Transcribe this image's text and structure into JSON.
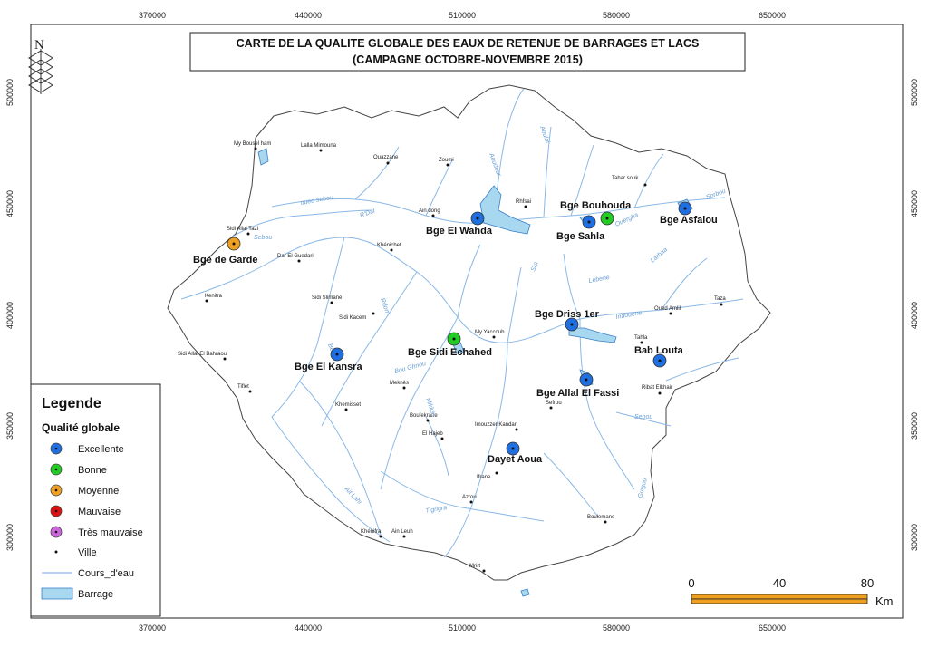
{
  "title": {
    "line1": "CARTE DE LA QUALITE GLOBALE DES EAUX DE RETENUE DE BARRAGES ET LACS",
    "line2": "(CAMPAGNE OCTOBRE-NOVEMBRE 2015)"
  },
  "north_arrow": {
    "letter": "N"
  },
  "axes": {
    "x_ticks": [
      "370000",
      "440000",
      "510000",
      "580000",
      "650000"
    ],
    "y_ticks": [
      "500000",
      "450000",
      "400000",
      "350000",
      "300000"
    ]
  },
  "colors": {
    "Excellente": "#1f6fe0",
    "Bonne": "#22cc22",
    "Moyenne": "#f0a020",
    "Mauvaise": "#dd1111",
    "Tres mauvaise": "#cc66dd",
    "river": "#8ab8e6",
    "reservoir": "#a8d8f0"
  },
  "dams": [
    {
      "name": "Bge El Wahda",
      "quality": "Excellente"
    },
    {
      "name": "Bge Bouhouda",
      "quality": "Bonne"
    },
    {
      "name": "Bge Sahla",
      "quality": "Excellente"
    },
    {
      "name": "Bge Asfalou",
      "quality": "Excellente"
    },
    {
      "name": "Bge de Garde",
      "quality": "Moyenne"
    },
    {
      "name": "Bge Driss 1er",
      "quality": "Excellente"
    },
    {
      "name": "Bge Sidi Echahed",
      "quality": "Bonne"
    },
    {
      "name": "Bab Louta",
      "quality": "Excellente"
    },
    {
      "name": "Bge El Kansra",
      "quality": "Excellente"
    },
    {
      "name": "Bge Allal El Fassi",
      "quality": "Excellente"
    },
    {
      "name": "Dayet Aoua",
      "quality": "Excellente"
    }
  ],
  "cities": [
    "My Bousel ham",
    "Lalla Mimouna",
    "Ouazzane",
    "Zoumi",
    "Ain dorig",
    "Rhfsai",
    "Tahar souk",
    "Sidi Allal Tazi",
    "Khénichet",
    "Dar El Guedari",
    "Kenitra",
    "Sidi Slimane",
    "Sidi Kacem",
    "My Yaccoub",
    "Sidi Allal El Bahraoui",
    "Taza",
    "Oued Amlil",
    "Tahla",
    "Meknès",
    "Tiflet",
    "Khemisset",
    "Boufekrane",
    "Ribat Elkhair",
    "Sefrou",
    "El Hajeb",
    "Imouzzer Kandar",
    "Ifrane",
    "Azrou",
    "Boulemane",
    "Khénifra",
    "Ain Leuh",
    "Mrirt"
  ],
  "rivers": [
    "oued sebou",
    "Sebou",
    "R'Dat",
    "Ouergha",
    "Aoudour",
    "Aoulai",
    "Sra",
    "Lebene",
    "Inaouene",
    "Larbaa",
    "Sorbou",
    "Beht",
    "Rdom",
    "Mikkès",
    "Bou Ghnou",
    "Guigou",
    "Sebou",
    "Tigrigra",
    "Ait Lahi"
  ],
  "legend": {
    "title": "Legende",
    "subtitle": "Qualité globale",
    "items": [
      "Excellente",
      "Bonne",
      "Moyenne",
      "Mauvaise",
      "Très mauvaise"
    ],
    "ville": "Ville",
    "river": "Cours_d'eau",
    "barrage": "Barrage"
  },
  "scale": {
    "labels": [
      "0",
      "40",
      "80"
    ],
    "unit": "Km"
  }
}
